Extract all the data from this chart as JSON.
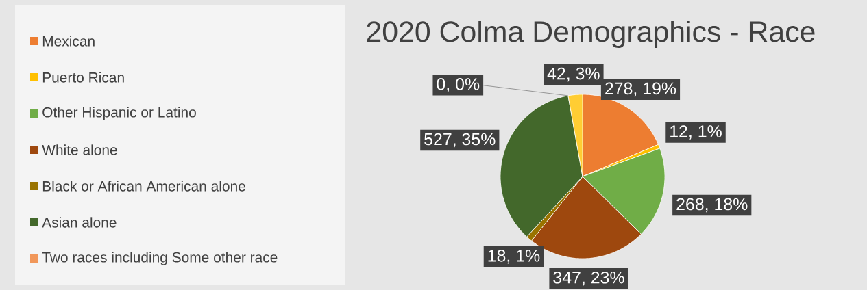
{
  "chart_data": {
    "type": "pie",
    "title": "2020 Colma Demographics - Race",
    "categories": [
      "Mexican",
      "Puerto Rican",
      "Other Hispanic or Latino",
      "White alone",
      "Black or African American alone",
      "Asian alone",
      "Two races including Some other race",
      null
    ],
    "values": [
      278,
      12,
      268,
      347,
      18,
      527,
      0,
      42
    ],
    "colors": [
      "#ed7d31",
      "#ffc000",
      "#70ad47",
      "#9e480e",
      "#997300",
      "#43682b",
      "#f1975a",
      "#ffcd33"
    ],
    "value_labels": [
      "278, 19%",
      "12, 1%",
      "268, 18%",
      "347, 23%",
      "18, 1%",
      "527, 35%",
      "0, 0%",
      "42, 3%"
    ],
    "legend": "left"
  }
}
